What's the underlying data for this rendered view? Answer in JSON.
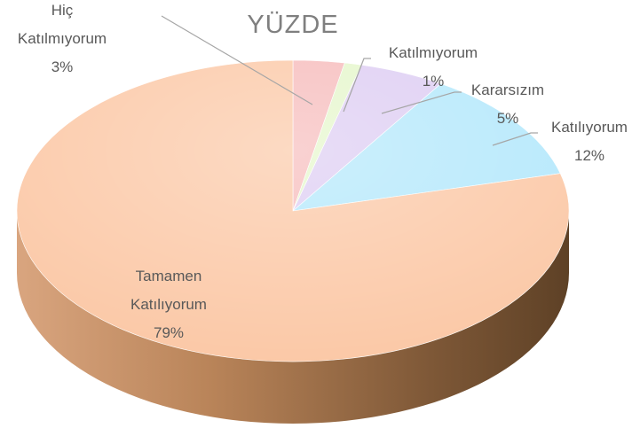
{
  "chart_data": {
    "type": "pie",
    "title": "YÜZDE",
    "categories": [
      "Hiç Katılmıyorum",
      "Katılmıyorum",
      "Kararsızım",
      "Katılıyorum",
      "Tamamen Katılıyorum"
    ],
    "values": [
      3,
      1,
      5,
      12,
      79
    ],
    "value_labels": [
      "3%",
      "1%",
      "5%",
      "12%",
      "79%"
    ],
    "colors": [
      "#f6b9b9",
      "#e4f6c9",
      "#dccbf2",
      "#b1e7fb",
      "#fbc6a3"
    ]
  }
}
